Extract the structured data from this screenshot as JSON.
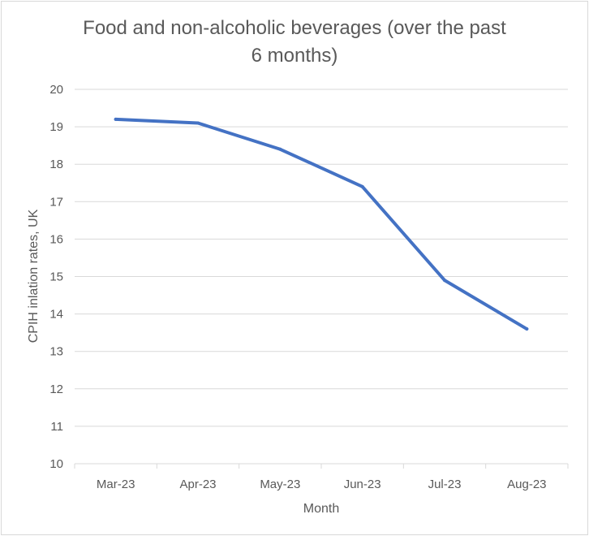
{
  "chart_data": {
    "type": "line",
    "title_lines": [
      "Food and non-alcoholic beverages (over the past",
      "6 months)"
    ],
    "xlabel": "Month",
    "ylabel": "CPIH inlation rates, UK",
    "categories": [
      "Mar-23",
      "Apr-23",
      "May-23",
      "Jun-23",
      "Jul-23",
      "Aug-23"
    ],
    "series": [
      {
        "values": [
          19.2,
          19.1,
          18.4,
          17.4,
          14.9,
          13.6
        ]
      }
    ],
    "ylim": [
      10,
      20
    ],
    "yticks": [
      "10",
      "11",
      "12",
      "13",
      "14",
      "15",
      "16",
      "17",
      "18",
      "19",
      "20"
    ],
    "grid": true,
    "legend": "none",
    "colors": {
      "line": "#4472c4",
      "grid": "#d9d9d9",
      "text": "#595959"
    }
  }
}
